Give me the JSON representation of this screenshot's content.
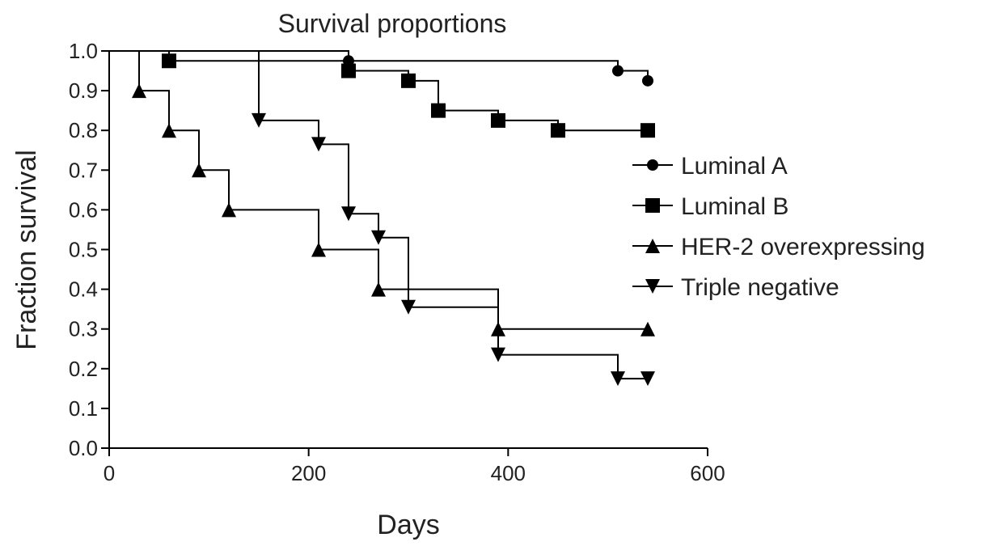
{
  "chart_data": {
    "type": "line",
    "step": true,
    "title": "Survival proportions",
    "xlabel": "Days",
    "ylabel": "Fraction survival",
    "xlim": [
      0,
      600
    ],
    "ylim": [
      0,
      1
    ],
    "xticks": [
      "0",
      "200",
      "400",
      "600"
    ],
    "yticks": [
      "0.0",
      "0.1",
      "0.2",
      "0.3",
      "0.4",
      "0.5",
      "0.6",
      "0.7",
      "0.8",
      "0.9",
      "1.0"
    ],
    "grid": false,
    "legend_position": "right",
    "series": [
      {
        "name": "Luminal A",
        "marker": "circle",
        "steps": [
          [
            0,
            1.0
          ],
          [
            240,
            0.975
          ],
          [
            510,
            0.95
          ],
          [
            540,
            0.925
          ]
        ],
        "markers": [
          [
            240,
            0.975
          ],
          [
            510,
            0.95
          ],
          [
            540,
            0.925
          ]
        ]
      },
      {
        "name": "Luminal B",
        "marker": "square",
        "steps": [
          [
            0,
            1.0
          ],
          [
            60,
            0.975
          ],
          [
            240,
            0.95
          ],
          [
            300,
            0.925
          ],
          [
            330,
            0.85
          ],
          [
            390,
            0.825
          ],
          [
            450,
            0.8
          ],
          [
            540,
            0.8
          ]
        ],
        "markers": [
          [
            60,
            0.975
          ],
          [
            240,
            0.95
          ],
          [
            300,
            0.925
          ],
          [
            330,
            0.85
          ],
          [
            390,
            0.825
          ],
          [
            450,
            0.8
          ],
          [
            540,
            0.8
          ]
        ]
      },
      {
        "name": "HER-2 overexpressing",
        "marker": "triangle-up",
        "steps": [
          [
            0,
            1.0
          ],
          [
            30,
            0.9
          ],
          [
            60,
            0.8
          ],
          [
            90,
            0.7
          ],
          [
            120,
            0.6
          ],
          [
            210,
            0.5
          ],
          [
            270,
            0.4
          ],
          [
            390,
            0.3
          ],
          [
            540,
            0.3
          ]
        ],
        "markers": [
          [
            30,
            0.9
          ],
          [
            60,
            0.8
          ],
          [
            90,
            0.7
          ],
          [
            120,
            0.6
          ],
          [
            210,
            0.5
          ],
          [
            270,
            0.4
          ],
          [
            390,
            0.3
          ],
          [
            540,
            0.3
          ]
        ]
      },
      {
        "name": "Triple negative",
        "marker": "triangle-down",
        "steps": [
          [
            0,
            1.0
          ],
          [
            150,
            0.825
          ],
          [
            210,
            0.765
          ],
          [
            240,
            0.59
          ],
          [
            270,
            0.53
          ],
          [
            300,
            0.355
          ],
          [
            390,
            0.235
          ],
          [
            510,
            0.175
          ],
          [
            540,
            0.175
          ]
        ],
        "markers": [
          [
            150,
            0.825
          ],
          [
            210,
            0.765
          ],
          [
            240,
            0.59
          ],
          [
            270,
            0.53
          ],
          [
            300,
            0.355
          ],
          [
            390,
            0.235
          ],
          [
            510,
            0.175
          ],
          [
            540,
            0.175
          ]
        ]
      }
    ]
  }
}
